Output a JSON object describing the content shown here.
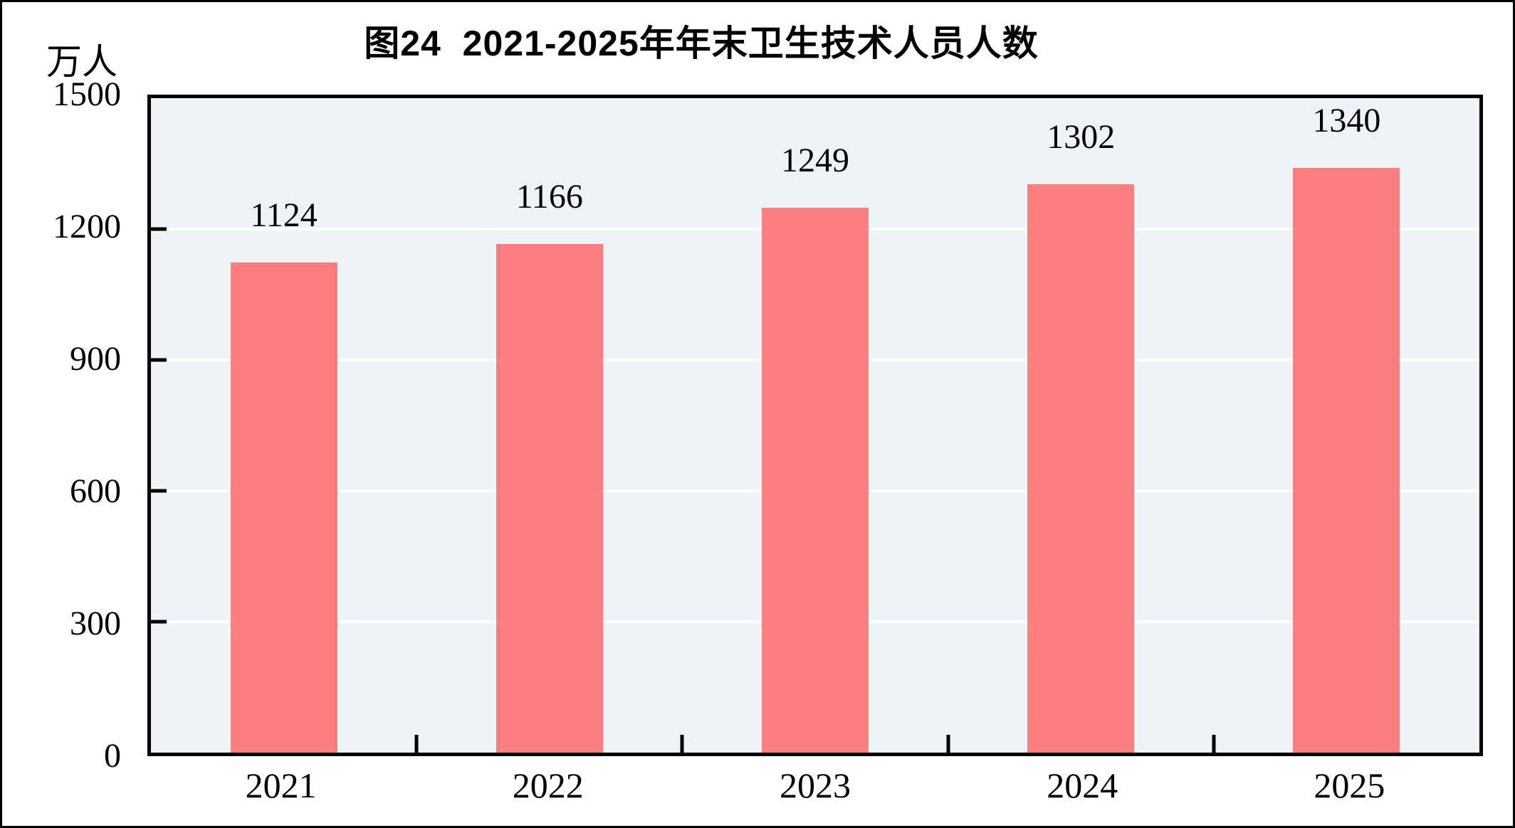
{
  "figure": {
    "background": "#FFFFFF",
    "frame_border_color": "#000000"
  },
  "chart_data": {
    "type": "bar",
    "title": "图24  2021-2025年年末卫生技术人员人数",
    "ylabel": "万人",
    "xlabel": "",
    "categories": [
      "2021",
      "2022",
      "2023",
      "2024",
      "2025"
    ],
    "values": [
      1124,
      1166,
      1249,
      1302,
      1340
    ],
    "data_labels": [
      "1124",
      "1166",
      "1249",
      "1302",
      "1340"
    ],
    "ylim": [
      0,
      1500
    ],
    "yticks": [
      0,
      300,
      600,
      900,
      1200,
      1500
    ],
    "grid": true,
    "legend": false,
    "bar_color": "#FC7E7E",
    "plot_background": "#EEF3F6",
    "gridline_color": "#FFFFFF",
    "axis_color": "#000000",
    "text_color": "#000000"
  }
}
